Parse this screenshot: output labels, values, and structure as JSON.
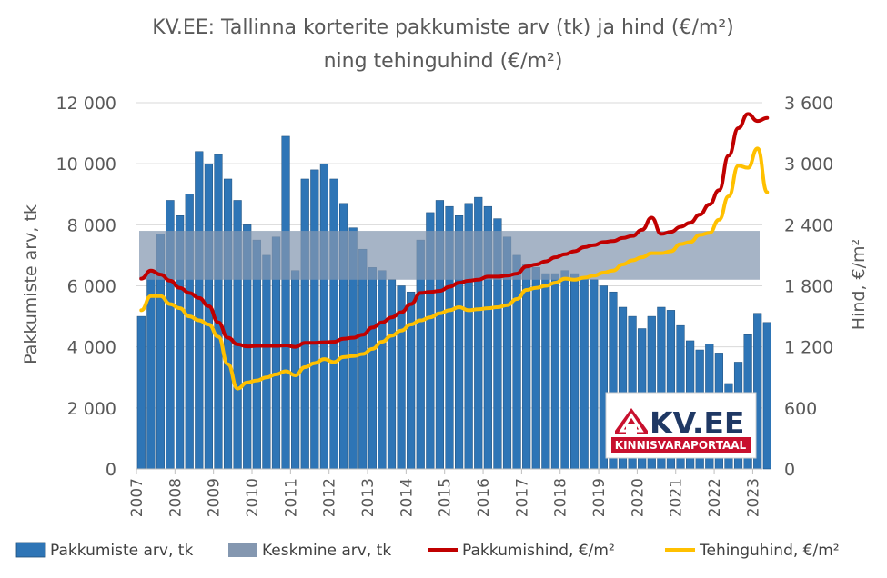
{
  "chart_data": {
    "type": "bar",
    "title_line1": "KV.EE: Tallinna korterite pakkumiste arv (tk) ja hind (€/m²)",
    "title_line2": "ning tehinguhind (€/m²)",
    "ylabel_left": "Pakkumiste arv, tk",
    "ylabel_right": "Hind, €/m²",
    "ylim_left": [
      0,
      12000
    ],
    "ylim_right": [
      0,
      3600
    ],
    "yticks_left": [
      "0",
      "2 000",
      "4 000",
      "6 000",
      "8 000",
      "10 000",
      "12 000"
    ],
    "yticks_right": [
      "0",
      "600",
      "1 200",
      "1 800",
      "2 400",
      "3 000",
      "3 600"
    ],
    "xticks": [
      "2007",
      "2008",
      "2009",
      "2010",
      "2011",
      "2012",
      "2013",
      "2014",
      "2015",
      "2016",
      "2017",
      "2018",
      "2019",
      "2020",
      "2021",
      "2022",
      "2023"
    ],
    "xlim": [
      2007.0,
      2023.25
    ],
    "grid": true,
    "legend_position": "bottom",
    "colors": {
      "bars": "#2e75b6",
      "band": "#8497b0",
      "offer_price": "#c00000",
      "transaction_price": "#ffc000"
    },
    "band": {
      "name": "Keskmine arv, tk",
      "range": [
        6200,
        7800
      ]
    },
    "series": [
      {
        "name": "Pakkumiste arv, tk",
        "type": "bar",
        "points": [
          [
            2007.0,
            5000
          ],
          [
            2007.25,
            6500
          ],
          [
            2007.5,
            7700
          ],
          [
            2007.75,
            8800
          ],
          [
            2008.0,
            8300
          ],
          [
            2008.25,
            9000
          ],
          [
            2008.5,
            10400
          ],
          [
            2008.75,
            10000
          ],
          [
            2009.0,
            10300
          ],
          [
            2009.25,
            9500
          ],
          [
            2009.5,
            8800
          ],
          [
            2009.75,
            8000
          ],
          [
            2010.0,
            7500
          ],
          [
            2010.25,
            7000
          ],
          [
            2010.5,
            7600
          ],
          [
            2010.75,
            10900
          ],
          [
            2011.0,
            6500
          ],
          [
            2011.25,
            9500
          ],
          [
            2011.5,
            9800
          ],
          [
            2011.75,
            10000
          ],
          [
            2012.0,
            9500
          ],
          [
            2012.25,
            8700
          ],
          [
            2012.5,
            7900
          ],
          [
            2012.75,
            7200
          ],
          [
            2013.0,
            6600
          ],
          [
            2013.25,
            6500
          ],
          [
            2013.5,
            6200
          ],
          [
            2013.75,
            6000
          ],
          [
            2014.0,
            5800
          ],
          [
            2014.25,
            7500
          ],
          [
            2014.5,
            8400
          ],
          [
            2014.75,
            8800
          ],
          [
            2015.0,
            8600
          ],
          [
            2015.25,
            8300
          ],
          [
            2015.5,
            8700
          ],
          [
            2015.75,
            8900
          ],
          [
            2016.0,
            8600
          ],
          [
            2016.25,
            8200
          ],
          [
            2016.5,
            7600
          ],
          [
            2016.75,
            7000
          ],
          [
            2017.0,
            6700
          ],
          [
            2017.25,
            6600
          ],
          [
            2017.5,
            6400
          ],
          [
            2017.75,
            6400
          ],
          [
            2018.0,
            6500
          ],
          [
            2018.25,
            6400
          ],
          [
            2018.5,
            6300
          ],
          [
            2018.75,
            6200
          ],
          [
            2019.0,
            6000
          ],
          [
            2019.25,
            5800
          ],
          [
            2019.5,
            5300
          ],
          [
            2019.75,
            5000
          ],
          [
            2020.0,
            4600
          ],
          [
            2020.25,
            5000
          ],
          [
            2020.5,
            5300
          ],
          [
            2020.75,
            5200
          ],
          [
            2021.0,
            4700
          ],
          [
            2021.25,
            4200
          ],
          [
            2021.5,
            3900
          ],
          [
            2021.75,
            4100
          ],
          [
            2022.0,
            3800
          ],
          [
            2022.25,
            2800
          ],
          [
            2022.5,
            3500
          ],
          [
            2022.75,
            4400
          ],
          [
            2023.0,
            5100
          ],
          [
            2023.25,
            4800
          ]
        ]
      },
      {
        "name": "Pakkumishind, €/m²",
        "type": "line",
        "points": [
          [
            2007.0,
            1870
          ],
          [
            2007.25,
            1950
          ],
          [
            2007.5,
            1910
          ],
          [
            2007.75,
            1850
          ],
          [
            2008.0,
            1780
          ],
          [
            2008.25,
            1730
          ],
          [
            2008.5,
            1680
          ],
          [
            2008.75,
            1600
          ],
          [
            2009.0,
            1440
          ],
          [
            2009.25,
            1290
          ],
          [
            2009.5,
            1225
          ],
          [
            2009.75,
            1205
          ],
          [
            2010.0,
            1210
          ],
          [
            2010.25,
            1210
          ],
          [
            2010.5,
            1210
          ],
          [
            2010.75,
            1215
          ],
          [
            2011.0,
            1200
          ],
          [
            2011.25,
            1240
          ],
          [
            2011.5,
            1240
          ],
          [
            2011.75,
            1245
          ],
          [
            2012.0,
            1250
          ],
          [
            2012.25,
            1280
          ],
          [
            2012.5,
            1290
          ],
          [
            2012.75,
            1320
          ],
          [
            2013.0,
            1390
          ],
          [
            2013.25,
            1440
          ],
          [
            2013.5,
            1490
          ],
          [
            2013.75,
            1540
          ],
          [
            2014.0,
            1620
          ],
          [
            2014.25,
            1730
          ],
          [
            2014.5,
            1740
          ],
          [
            2014.75,
            1750
          ],
          [
            2015.0,
            1790
          ],
          [
            2015.25,
            1830
          ],
          [
            2015.5,
            1850
          ],
          [
            2015.75,
            1860
          ],
          [
            2016.0,
            1890
          ],
          [
            2016.25,
            1890
          ],
          [
            2016.5,
            1900
          ],
          [
            2016.75,
            1920
          ],
          [
            2017.0,
            1990
          ],
          [
            2017.25,
            2010
          ],
          [
            2017.5,
            2040
          ],
          [
            2017.75,
            2080
          ],
          [
            2018.0,
            2110
          ],
          [
            2018.25,
            2140
          ],
          [
            2018.5,
            2180
          ],
          [
            2018.75,
            2200
          ],
          [
            2019.0,
            2230
          ],
          [
            2019.25,
            2240
          ],
          [
            2019.5,
            2270
          ],
          [
            2019.75,
            2290
          ],
          [
            2020.0,
            2350
          ],
          [
            2020.25,
            2470
          ],
          [
            2020.5,
            2310
          ],
          [
            2020.75,
            2330
          ],
          [
            2021.0,
            2380
          ],
          [
            2021.25,
            2420
          ],
          [
            2021.5,
            2500
          ],
          [
            2021.75,
            2600
          ],
          [
            2022.0,
            2740
          ],
          [
            2022.25,
            3080
          ],
          [
            2022.5,
            3350
          ],
          [
            2022.75,
            3490
          ],
          [
            2023.0,
            3420
          ],
          [
            2023.25,
            3450
          ]
        ]
      },
      {
        "name": "Tehinguhind, €/m²",
        "type": "line",
        "points": [
          [
            2007.0,
            1560
          ],
          [
            2007.25,
            1700
          ],
          [
            2007.5,
            1700
          ],
          [
            2007.75,
            1620
          ],
          [
            2008.0,
            1580
          ],
          [
            2008.25,
            1500
          ],
          [
            2008.5,
            1460
          ],
          [
            2008.75,
            1420
          ],
          [
            2009.0,
            1300
          ],
          [
            2009.25,
            1030
          ],
          [
            2009.5,
            790
          ],
          [
            2009.75,
            850
          ],
          [
            2010.0,
            870
          ],
          [
            2010.25,
            900
          ],
          [
            2010.5,
            930
          ],
          [
            2010.75,
            960
          ],
          [
            2011.0,
            920
          ],
          [
            2011.25,
            1000
          ],
          [
            2011.5,
            1040
          ],
          [
            2011.75,
            1080
          ],
          [
            2012.0,
            1050
          ],
          [
            2012.25,
            1100
          ],
          [
            2012.5,
            1110
          ],
          [
            2012.75,
            1130
          ],
          [
            2013.0,
            1180
          ],
          [
            2013.25,
            1250
          ],
          [
            2013.5,
            1310
          ],
          [
            2013.75,
            1360
          ],
          [
            2014.0,
            1420
          ],
          [
            2014.25,
            1460
          ],
          [
            2014.5,
            1490
          ],
          [
            2014.75,
            1530
          ],
          [
            2015.0,
            1560
          ],
          [
            2015.25,
            1590
          ],
          [
            2015.5,
            1560
          ],
          [
            2015.75,
            1570
          ],
          [
            2016.0,
            1580
          ],
          [
            2016.25,
            1590
          ],
          [
            2016.5,
            1610
          ],
          [
            2016.75,
            1670
          ],
          [
            2017.0,
            1760
          ],
          [
            2017.25,
            1780
          ],
          [
            2017.5,
            1800
          ],
          [
            2017.75,
            1830
          ],
          [
            2018.0,
            1870
          ],
          [
            2018.25,
            1860
          ],
          [
            2018.5,
            1880
          ],
          [
            2018.75,
            1900
          ],
          [
            2019.0,
            1930
          ],
          [
            2019.25,
            1950
          ],
          [
            2019.5,
            2010
          ],
          [
            2019.75,
            2050
          ],
          [
            2020.0,
            2080
          ],
          [
            2020.25,
            2120
          ],
          [
            2020.5,
            2120
          ],
          [
            2020.75,
            2140
          ],
          [
            2021.0,
            2210
          ],
          [
            2021.25,
            2230
          ],
          [
            2021.5,
            2300
          ],
          [
            2021.75,
            2320
          ],
          [
            2022.0,
            2450
          ],
          [
            2022.25,
            2680
          ],
          [
            2022.5,
            2980
          ],
          [
            2022.75,
            2960
          ],
          [
            2023.0,
            3150
          ],
          [
            2023.25,
            2720
          ]
        ]
      }
    ]
  },
  "logo": {
    "brand": "KV.EE",
    "tagline": "KINNISVARAPORTAAL"
  }
}
